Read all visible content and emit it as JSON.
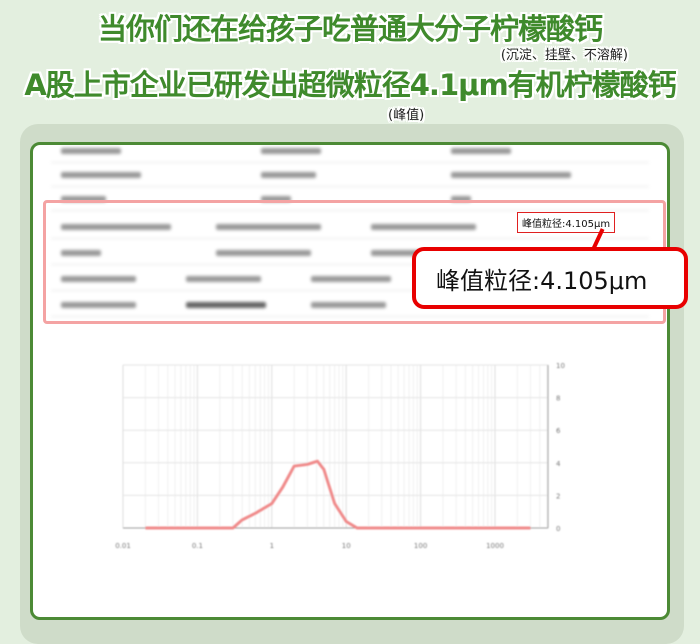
{
  "headline": {
    "line1": "当你们还在给孩子吃普通大分子柠檬酸钙",
    "note1": "(沉淀、挂壁、不溶解)",
    "line2": "A股上市企业已研发出超微粒径4.1μm有机柠檬酸钙",
    "note2": "(峰值)"
  },
  "report": {
    "peak_small": "峰值粒径:4.105μm",
    "peak_callout": "峰值粒径:4.105μm"
  },
  "colors": {
    "headline": "#3f8a2c",
    "frame": "#4c8a35",
    "highlight": "#e80000",
    "curve": "#f08a8a"
  },
  "chart_data": {
    "type": "line",
    "x_scale": "log",
    "xlim": [
      0.01,
      5000
    ],
    "ylim": [
      0,
      10
    ],
    "x_ticks": [
      "0.01",
      "0.1",
      "1",
      "10",
      "100",
      "1000"
    ],
    "y_ticks": [
      "0",
      "2",
      "4",
      "6",
      "8",
      "10"
    ],
    "y_axis_side": "right",
    "grid": true,
    "x": [
      0.02,
      0.3,
      0.4,
      0.6,
      1,
      1.4,
      2,
      3,
      4.1,
      5,
      7,
      10,
      14,
      100,
      3000
    ],
    "y": [
      0,
      0,
      0.5,
      0.9,
      1.5,
      2.5,
      3.8,
      3.9,
      4.1,
      3.6,
      1.5,
      0.4,
      0,
      0,
      0
    ]
  }
}
